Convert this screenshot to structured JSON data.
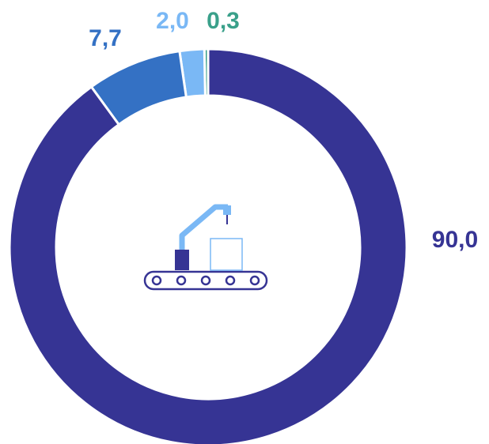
{
  "chart_data": {
    "type": "pie",
    "values": [
      90.0,
      7.7,
      2.0,
      0.3
    ],
    "value_labels": [
      "90,0",
      "7,7",
      "2,0",
      "0,3"
    ],
    "colors": [
      "#363494",
      "#3471c4",
      "#7ab8f5",
      "#3aa08a"
    ]
  }
}
